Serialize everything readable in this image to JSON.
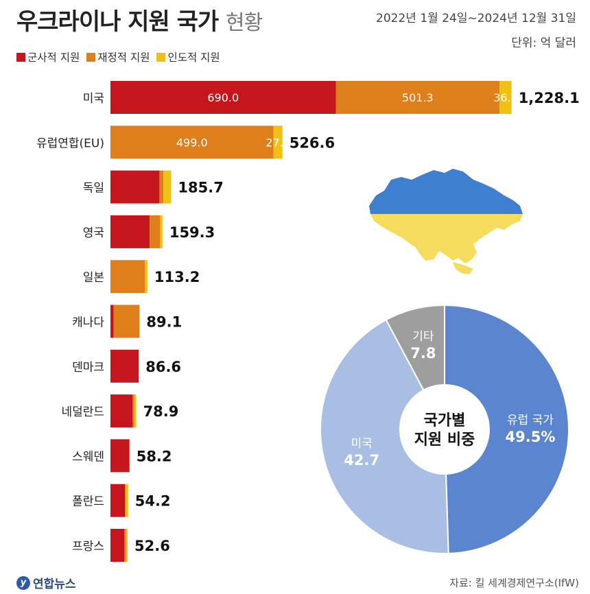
{
  "header": {
    "title": "우크라이나 지원 국가",
    "title_sub": "현황",
    "date_range": "2022년 1월 24일~2024년 12월 31일",
    "unit": "단위: 억 달러"
  },
  "legend": [
    {
      "label": "군사적 지원",
      "color": "#c4161c"
    },
    {
      "label": "재정적 지원",
      "color": "#de7f1c"
    },
    {
      "label": "인도적 지원",
      "color": "#f0c015"
    }
  ],
  "footer": {
    "logo_text": "연합뉴스",
    "source": "자료: 킬 세계경제연구소(IfW)"
  },
  "colors": {
    "military": "#c4161c",
    "financial": "#de7f1c",
    "humanitarian": "#f0c015",
    "pie_eu": "#5b86cf",
    "pie_us": "#a8bfe3",
    "pie_other": "#9e9e9e"
  },
  "chart_data": [
    {
      "type": "bar",
      "orientation": "horizontal",
      "stacked": true,
      "categories": [
        "미국",
        "유럽연합(EU)",
        "독일",
        "영국",
        "일본",
        "캐나다",
        "덴마크",
        "네덜란드",
        "스웨덴",
        "폴란드",
        "프랑스"
      ],
      "series": [
        {
          "name": "군사적 지원",
          "values": [
            690.0,
            0,
            150,
            120,
            0,
            10,
            86.6,
            68,
            58.2,
            45,
            42
          ]
        },
        {
          "name": "재정적 지원",
          "values": [
            501.3,
            499.0,
            12,
            32,
            105,
            79.1,
            0,
            5,
            0,
            0,
            5
          ]
        },
        {
          "name": "인도적 지원",
          "values": [
            36.8,
            27.6,
            23.7,
            7.3,
            8.2,
            0,
            0,
            5.9,
            0,
            9.2,
            5.6
          ]
        }
      ],
      "segment_labels": [
        [
          "690.0",
          "501.3",
          "36.8"
        ],
        [
          "",
          "499.0",
          "27.6"
        ]
      ],
      "totals": [
        "1,228.1",
        "526.6",
        "185.7",
        "159.3",
        "113.2",
        "89.1",
        "86.6",
        "78.9",
        "58.2",
        "54.2",
        "52.6"
      ],
      "total_values": [
        1228.1,
        526.6,
        185.7,
        159.3,
        113.2,
        89.1,
        86.6,
        78.9,
        58.2,
        54.2,
        52.6
      ],
      "legend_position": "top-left"
    },
    {
      "type": "pie",
      "center_label": [
        "국가별",
        "지원 비중"
      ],
      "slices": [
        {
          "name": "유럽 국가",
          "value": 49.5,
          "value_label": "49.5%"
        },
        {
          "name": "미국",
          "value": 42.7,
          "value_label": "42.7"
        },
        {
          "name": "기타",
          "value": 7.8,
          "value_label": "7.8"
        }
      ]
    }
  ]
}
